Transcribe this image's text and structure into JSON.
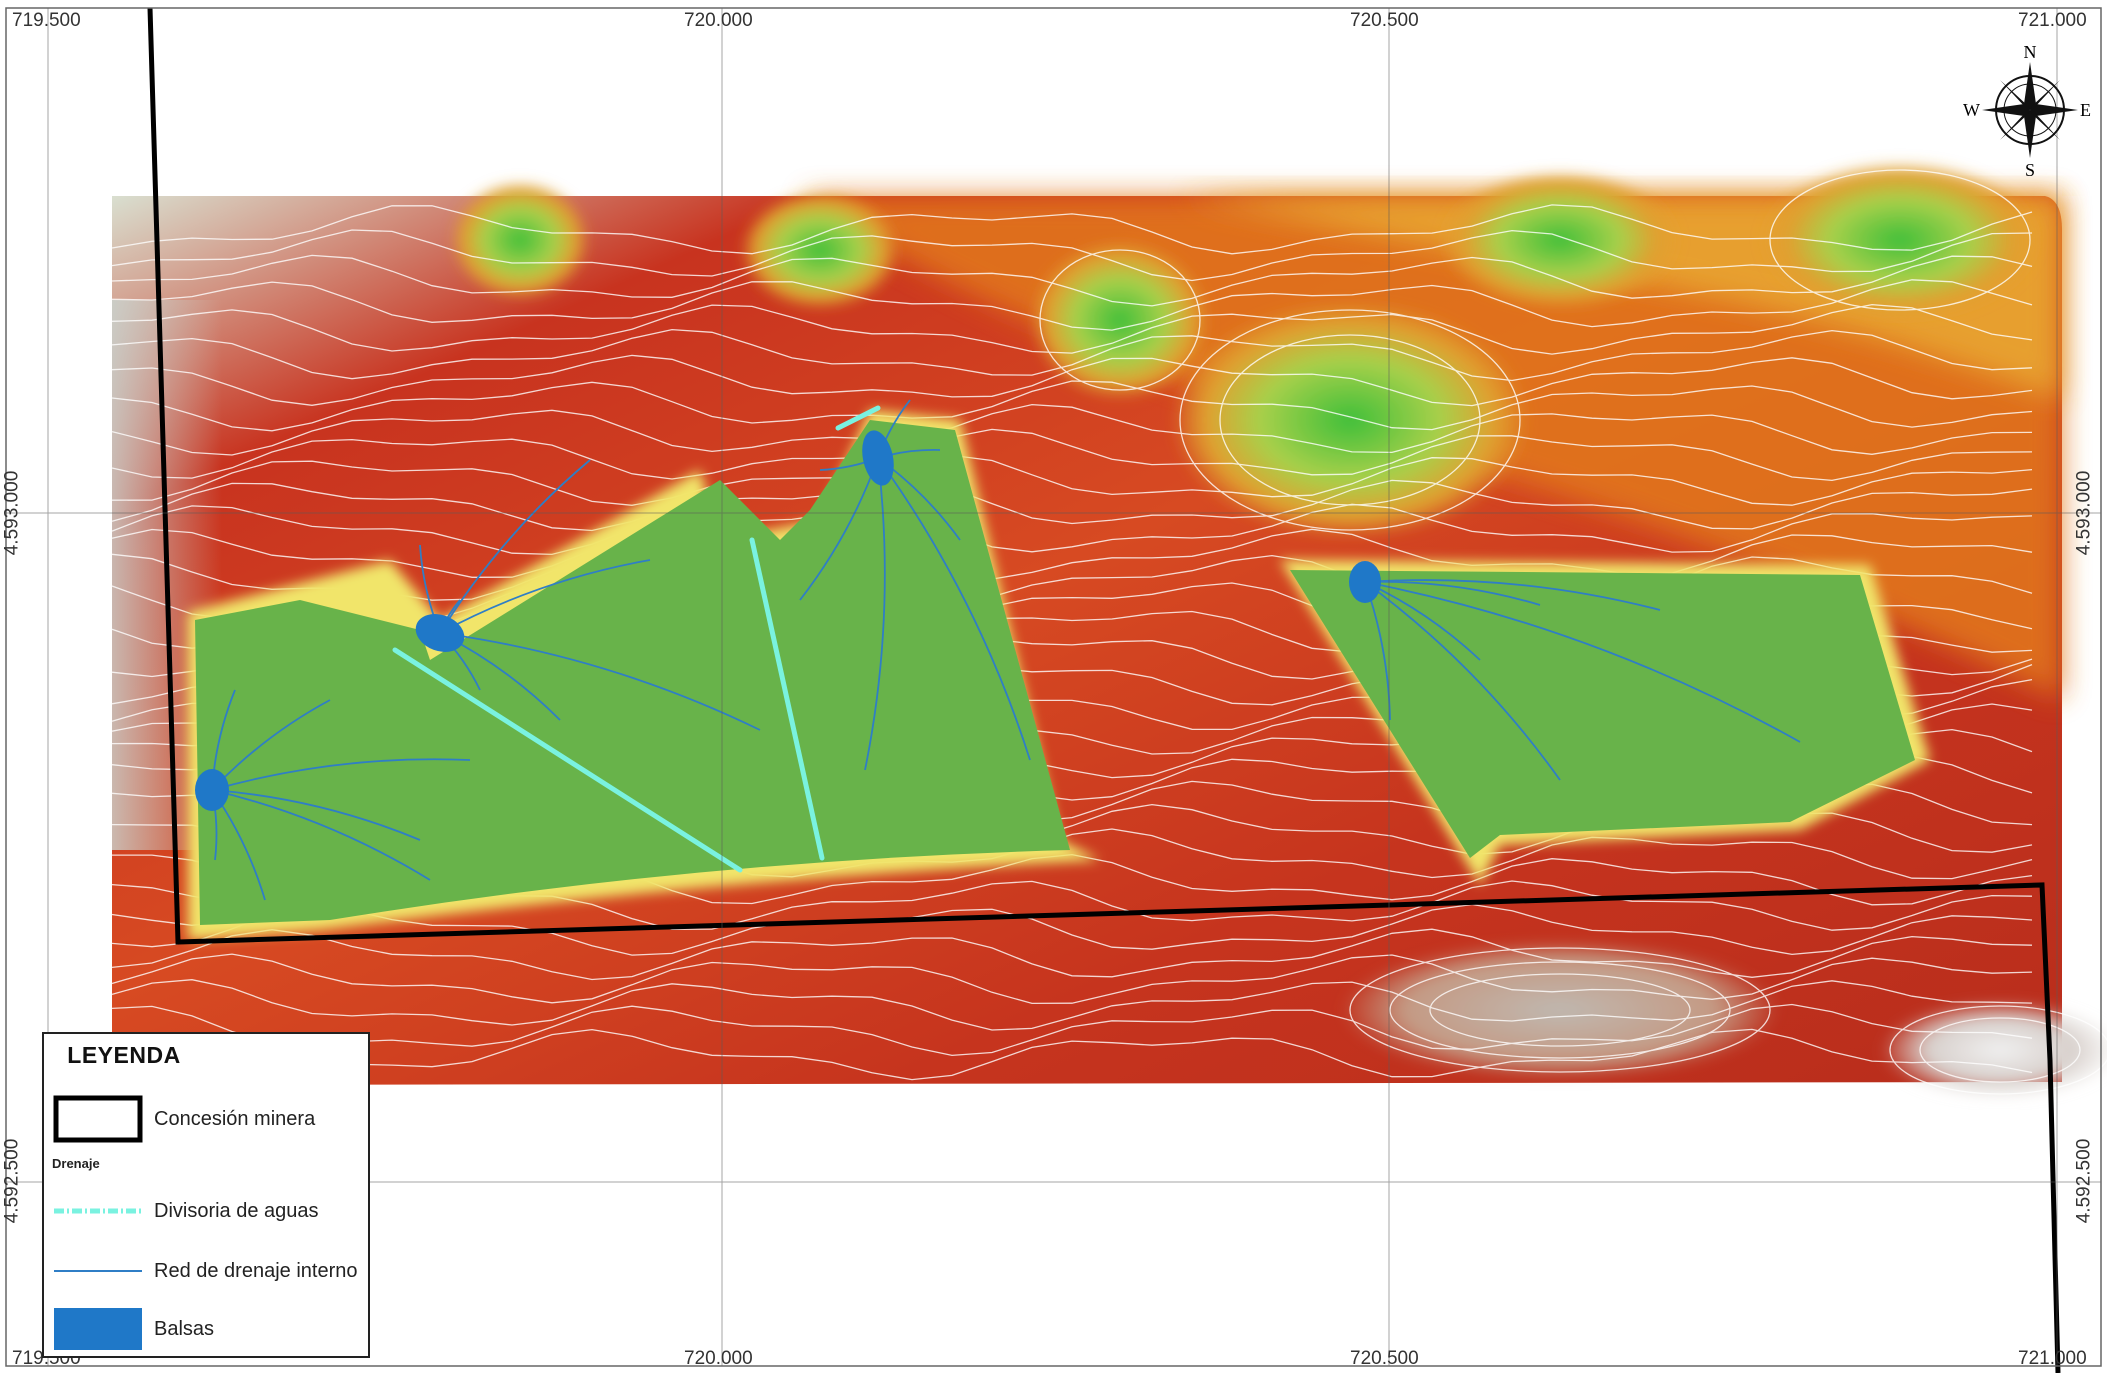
{
  "map": {
    "grid": {
      "x_labels": [
        "719.500",
        "720.000",
        "720.500",
        "721.000"
      ],
      "y_labels": [
        "4.593.000",
        "4.592.500"
      ]
    },
    "colors": {
      "low": "#c8331f",
      "mid": "#e07a1e",
      "high": "#3fbf3a",
      "platform": "#68b34a",
      "balsa": "#1f78c8",
      "divisoria": "#7af2e0",
      "drenaje": "#2f7ec6",
      "concesion": "#000000",
      "contour": "#ffffff"
    },
    "north_arrow": {
      "n": "N",
      "s": "S",
      "e": "E",
      "w": "W"
    }
  },
  "legend": {
    "title": "LEYENDA",
    "subheading": "Drenaje",
    "items": [
      {
        "label": "Concesión minera",
        "symbol": "concesion-box"
      },
      {
        "label": "Divisoria de aguas",
        "symbol": "divisoria-line"
      },
      {
        "label": "Red de drenaje interno",
        "symbol": "drenaje-line"
      },
      {
        "label": "Balsas",
        "symbol": "balsa-fill"
      }
    ]
  }
}
